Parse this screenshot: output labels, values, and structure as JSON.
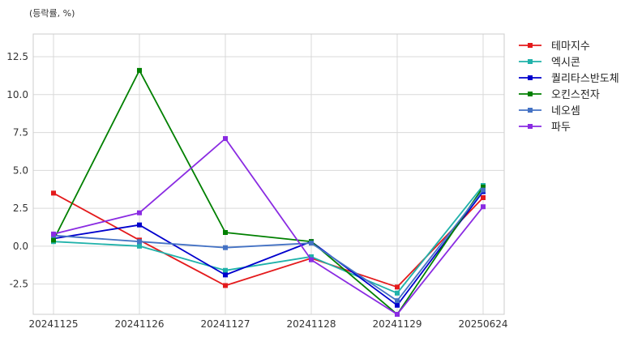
{
  "chart_data": {
    "type": "line",
    "title": "",
    "unit_label": "(등락률, %)",
    "xlabel": "",
    "ylabel": "",
    "categories": [
      "20241125",
      "20241126",
      "20241127",
      "20241128",
      "20241129",
      "20250624"
    ],
    "ylim": [
      -4.5,
      14
    ],
    "yticks": [
      -2.5,
      0.0,
      2.5,
      5.0,
      7.5,
      10.0,
      12.5
    ],
    "ytick_labels": [
      "-2.5",
      "0.0",
      "2.5",
      "5.0",
      "7.5",
      "10.0",
      "12.5"
    ],
    "grid": true,
    "legend_position": "right",
    "series": [
      {
        "name": "테마지수",
        "color": "#e41a1c",
        "values": [
          3.5,
          0.4,
          -2.6,
          -0.8,
          -2.7,
          3.2
        ]
      },
      {
        "name": "엑시콘",
        "color": "#20b2aa",
        "values": [
          0.3,
          0.0,
          -1.6,
          -0.7,
          -3.1,
          4.0
        ]
      },
      {
        "name": "퀄리타스반도체",
        "color": "#0000cd",
        "values": [
          0.5,
          1.4,
          -1.9,
          0.3,
          -3.9,
          3.6
        ]
      },
      {
        "name": "오킨스전자",
        "color": "#008000",
        "values": [
          0.4,
          11.6,
          0.9,
          0.3,
          -4.5,
          3.9
        ]
      },
      {
        "name": "네오셈",
        "color": "#4472c4",
        "values": [
          0.7,
          0.3,
          -0.1,
          0.2,
          -3.6,
          3.7
        ]
      },
      {
        "name": "파두",
        "color": "#8a2be2",
        "values": [
          0.8,
          2.2,
          7.1,
          -0.9,
          -4.5,
          2.6
        ]
      }
    ]
  }
}
